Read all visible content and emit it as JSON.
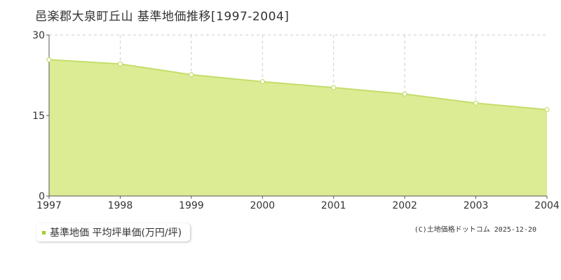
{
  "chart_data": {
    "type": "area",
    "title": "邑楽郡大泉町丘山 基準地価推移[1997-2004]",
    "x": [
      "1997",
      "1998",
      "1999",
      "2000",
      "2001",
      "2002",
      "2003",
      "2004"
    ],
    "series": [
      {
        "name": "基準地価 平均坪単価(万円/坪)",
        "values": [
          25.4,
          24.6,
          22.6,
          21.3,
          20.2,
          19.0,
          17.3,
          16.1
        ]
      }
    ],
    "yticks": [
      "0",
      "15",
      "30"
    ],
    "ylim": [
      0,
      30
    ],
    "grid": true,
    "legend": "bottom-left",
    "colors": {
      "fill": "#dcec94",
      "line": "#c4dd6a",
      "marker": "#c4dd6a",
      "swatch": "#a3cc2a"
    }
  },
  "credit": "(C)土地価格ドットコム 2025-12-20"
}
